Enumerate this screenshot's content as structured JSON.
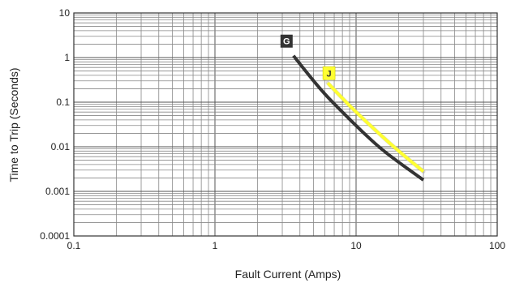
{
  "chart_data": {
    "type": "line",
    "title": "",
    "xlabel": "Fault Current (Amps)",
    "ylabel": "Time to Trip (Seconds)",
    "x_scale": "log",
    "y_scale": "log",
    "xlim": [
      0.1,
      100
    ],
    "ylim": [
      0.0001,
      10
    ],
    "grid": true,
    "x_ticks": [
      {
        "value": 0.1,
        "label": "0.1"
      },
      {
        "value": 1,
        "label": "1"
      },
      {
        "value": 10,
        "label": "10"
      },
      {
        "value": 100,
        "label": "100"
      }
    ],
    "y_ticks": [
      {
        "value": 10,
        "label": "10"
      },
      {
        "value": 1,
        "label": "1"
      },
      {
        "value": 0.1,
        "label": "0.1"
      },
      {
        "value": 0.01,
        "label": "0.01"
      },
      {
        "value": 0.001,
        "label": "0.001"
      },
      {
        "value": 0.0001,
        "label": "0.0001"
      }
    ],
    "series": [
      {
        "name": "G",
        "color": "#333333",
        "label_color": "#333333",
        "label_text_color": "#ffffff",
        "x": [
          3.6,
          4.5,
          6.0,
          8.0,
          11.0,
          15.0,
          20.0,
          30.0
        ],
        "y": [
          1.1,
          0.45,
          0.15,
          0.06,
          0.022,
          0.009,
          0.0045,
          0.0018
        ]
      },
      {
        "name": "J",
        "color": "#ffff33",
        "label_color": "#ffff33",
        "label_text_color": "#333333",
        "x": [
          6.3,
          7.5,
          10.0,
          14.0,
          20.0,
          30.0
        ],
        "y": [
          0.27,
          0.15,
          0.06,
          0.022,
          0.008,
          0.0028
        ]
      }
    ]
  }
}
